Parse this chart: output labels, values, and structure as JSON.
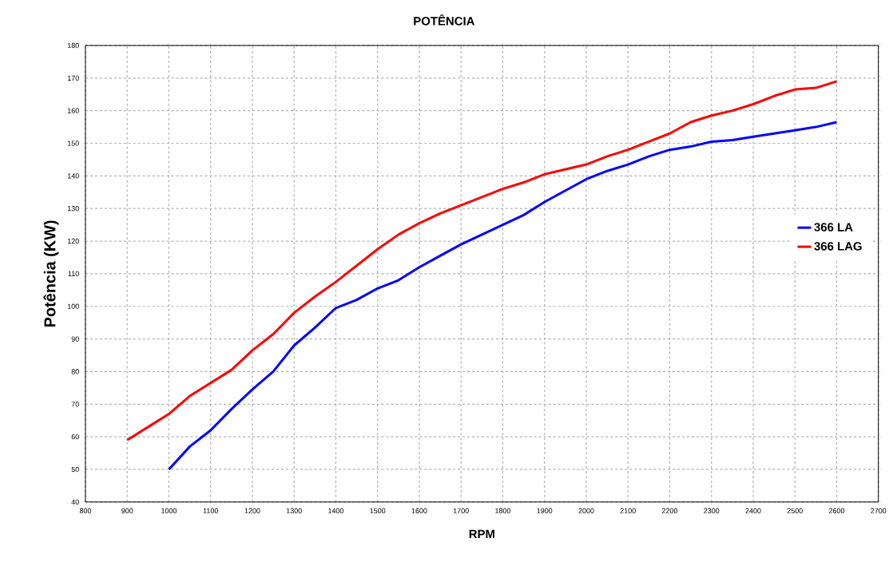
{
  "chart_data": {
    "type": "line",
    "title": "POTÊNCIA",
    "xlabel": "RPM",
    "ylabel": "Potência (KW)",
    "xlim": [
      800,
      2700
    ],
    "xticks": [
      800,
      900,
      1000,
      1100,
      1200,
      1300,
      1400,
      1500,
      1600,
      1700,
      1800,
      1900,
      2000,
      2100,
      2200,
      2300,
      2400,
      2500,
      2600,
      2700
    ],
    "ylim": [
      40,
      180
    ],
    "yticks": [
      40,
      50,
      60,
      70,
      80,
      90,
      100,
      110,
      120,
      130,
      140,
      150,
      160,
      170,
      180
    ],
    "grid": true,
    "legend": "right",
    "marker": "none",
    "line_style": "solid",
    "series": [
      {
        "name": "366 LA",
        "color": "#0000ff",
        "x": [
          1000,
          1050,
          1100,
          1150,
          1200,
          1250,
          1300,
          1350,
          1400,
          1450,
          1500,
          1550,
          1600,
          1650,
          1700,
          1750,
          1800,
          1850,
          1900,
          1950,
          2000,
          2050,
          2100,
          2150,
          2200,
          2250,
          2300,
          2350,
          2400,
          2450,
          2500,
          2550,
          2600
        ],
        "values": [
          50,
          57,
          62,
          68.5,
          74.5,
          80,
          88,
          93.5,
          99.5,
          102,
          105.5,
          108,
          112,
          115.5,
          119,
          122,
          125,
          128,
          132,
          135.5,
          139,
          141.5,
          143.5,
          146,
          148,
          149,
          150.5,
          151,
          152,
          153,
          154,
          155,
          156.5
        ]
      },
      {
        "name": "366 LAG",
        "color": "#ff0000",
        "x": [
          900,
          950,
          1000,
          1050,
          1100,
          1150,
          1200,
          1250,
          1300,
          1350,
          1400,
          1450,
          1500,
          1550,
          1600,
          1650,
          1700,
          1750,
          1800,
          1850,
          1900,
          1950,
          2000,
          2050,
          2100,
          2150,
          2200,
          2250,
          2300,
          2350,
          2400,
          2450,
          2500,
          2550,
          2600
        ],
        "values": [
          59,
          63,
          67,
          72.5,
          76.5,
          80.5,
          86.5,
          91.5,
          98,
          103,
          107.5,
          112.5,
          117.5,
          122,
          125.5,
          128.5,
          131,
          133.5,
          136,
          138,
          140.5,
          142,
          143.5,
          146,
          148,
          150.5,
          153,
          156.5,
          158.5,
          160,
          162,
          164.5,
          166.5,
          167,
          169
        ]
      }
    ]
  }
}
